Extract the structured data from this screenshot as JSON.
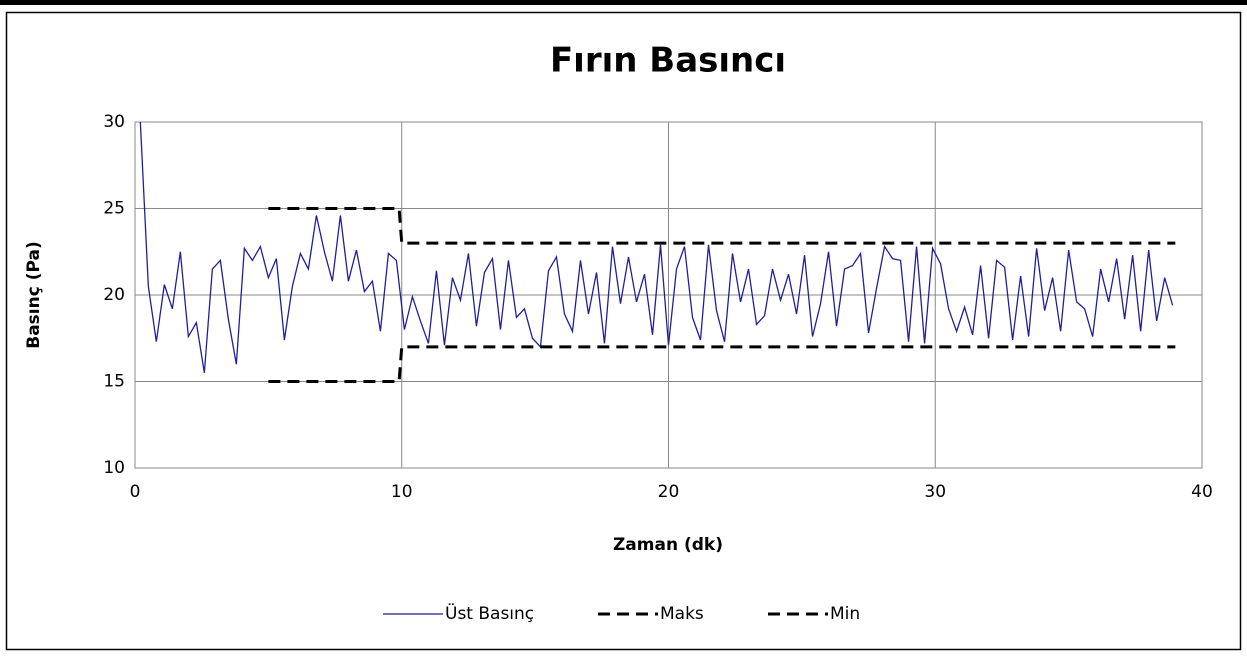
{
  "chart_data": {
    "type": "line",
    "title": "Fırın Basıncı",
    "x_label": "Zaman (dk)",
    "y_label": "Basınç (Pa)",
    "xlim": [
      0,
      40
    ],
    "xticks": [
      0,
      10,
      20,
      30,
      40
    ],
    "ylim": [
      10,
      30
    ],
    "yticks": [
      10,
      15,
      20,
      25,
      30
    ],
    "grid": true,
    "legend": "bottom",
    "series": [
      {
        "name": "Üst Basınç",
        "color": "#1f1f9e",
        "dashed": false,
        "x": [
          0.2,
          0.5,
          0.8,
          1.1,
          1.4,
          1.7,
          2,
          2.3,
          2.6,
          2.9,
          3.2,
          3.5,
          3.8,
          4.1,
          4.4,
          4.7,
          5,
          5.3,
          5.6,
          5.9,
          6.2,
          6.5,
          6.8,
          7.1,
          7.4,
          7.7,
          8,
          8.3,
          8.6,
          8.9,
          9.2,
          9.5,
          9.8,
          10.1,
          10.4,
          10.7,
          11,
          11.3,
          11.6,
          11.9,
          12.2,
          12.5,
          12.8,
          13.1,
          13.4,
          13.7,
          14,
          14.3,
          14.6,
          14.9,
          15.2,
          15.5,
          15.8,
          16.1,
          16.4,
          16.7,
          17,
          17.3,
          17.6,
          17.9,
          18.2,
          18.5,
          18.8,
          19.1,
          19.4,
          19.7,
          20,
          20.3,
          20.6,
          20.9,
          21.2,
          21.5,
          21.8,
          22.1,
          22.4,
          22.7,
          23,
          23.3,
          23.6,
          23.9,
          24.2,
          24.5,
          24.8,
          25.1,
          25.4,
          25.7,
          26,
          26.3,
          26.6,
          26.9,
          27.2,
          27.5,
          27.8,
          28.1,
          28.4,
          28.7,
          29,
          29.3,
          29.6,
          29.9,
          30.2,
          30.5,
          30.8,
          31.1,
          31.4,
          31.7,
          32,
          32.3,
          32.6,
          32.9,
          33.2,
          33.5,
          33.8,
          34.1,
          34.4,
          34.7,
          35,
          35.3,
          35.6,
          35.9,
          36.2,
          36.5,
          36.8,
          37.1,
          37.4,
          37.7,
          38,
          38.3,
          38.6,
          38.9
        ],
        "values": [
          30,
          20.5,
          17.3,
          20.6,
          19.2,
          22.5,
          17.6,
          18.4,
          15.5,
          21.5,
          22,
          18.6,
          16,
          22.7,
          22,
          22.8,
          21,
          22.1,
          17.4,
          20.5,
          22.4,
          21.5,
          24.6,
          22.5,
          20.8,
          24.6,
          20.8,
          22.6,
          20.2,
          20.8,
          17.9,
          22.4,
          22,
          18,
          19.9,
          18.5,
          17.2,
          21.4,
          17.1,
          21,
          19.7,
          22.4,
          18.2,
          21.3,
          22.1,
          18,
          22,
          18.7,
          19.2,
          17.5,
          17,
          21.4,
          22.2,
          18.9,
          17.9,
          22,
          18.9,
          21.3,
          17.2,
          22.8,
          19.5,
          22.2,
          19.6,
          21.2,
          17.7,
          22.9,
          17.1,
          21.5,
          22.8,
          18.7,
          17.4,
          22.9,
          19.1,
          17.3,
          22.4,
          19.6,
          21.5,
          18.3,
          18.8,
          21.5,
          19.7,
          21.2,
          18.9,
          22.3,
          17.6,
          19.5,
          22.5,
          18.2,
          21.5,
          21.7,
          22.4,
          17.8,
          20.4,
          22.8,
          22.1,
          22,
          17.3,
          22.8,
          17.2,
          22.7,
          21.8,
          19.2,
          17.9,
          19.3,
          17.7,
          21.7,
          17.5,
          22,
          21.6,
          17.4,
          21.1,
          17.6,
          22.7,
          19.1,
          21,
          17.9,
          22.6,
          19.6,
          19.2,
          17.6,
          21.5,
          19.6,
          22.1,
          18.6,
          22.3,
          17.9,
          22.6,
          18.5,
          21,
          19.4
        ]
      },
      {
        "name": "Maks",
        "color": "#000000",
        "dashed": true,
        "x": [
          5,
          9.9,
          10,
          39
        ],
        "values": [
          25,
          25,
          23,
          23
        ]
      },
      {
        "name": "Min",
        "color": "#000000",
        "dashed": true,
        "x": [
          5,
          9.9,
          10,
          39
        ],
        "values": [
          15,
          15,
          17,
          17
        ]
      }
    ]
  }
}
